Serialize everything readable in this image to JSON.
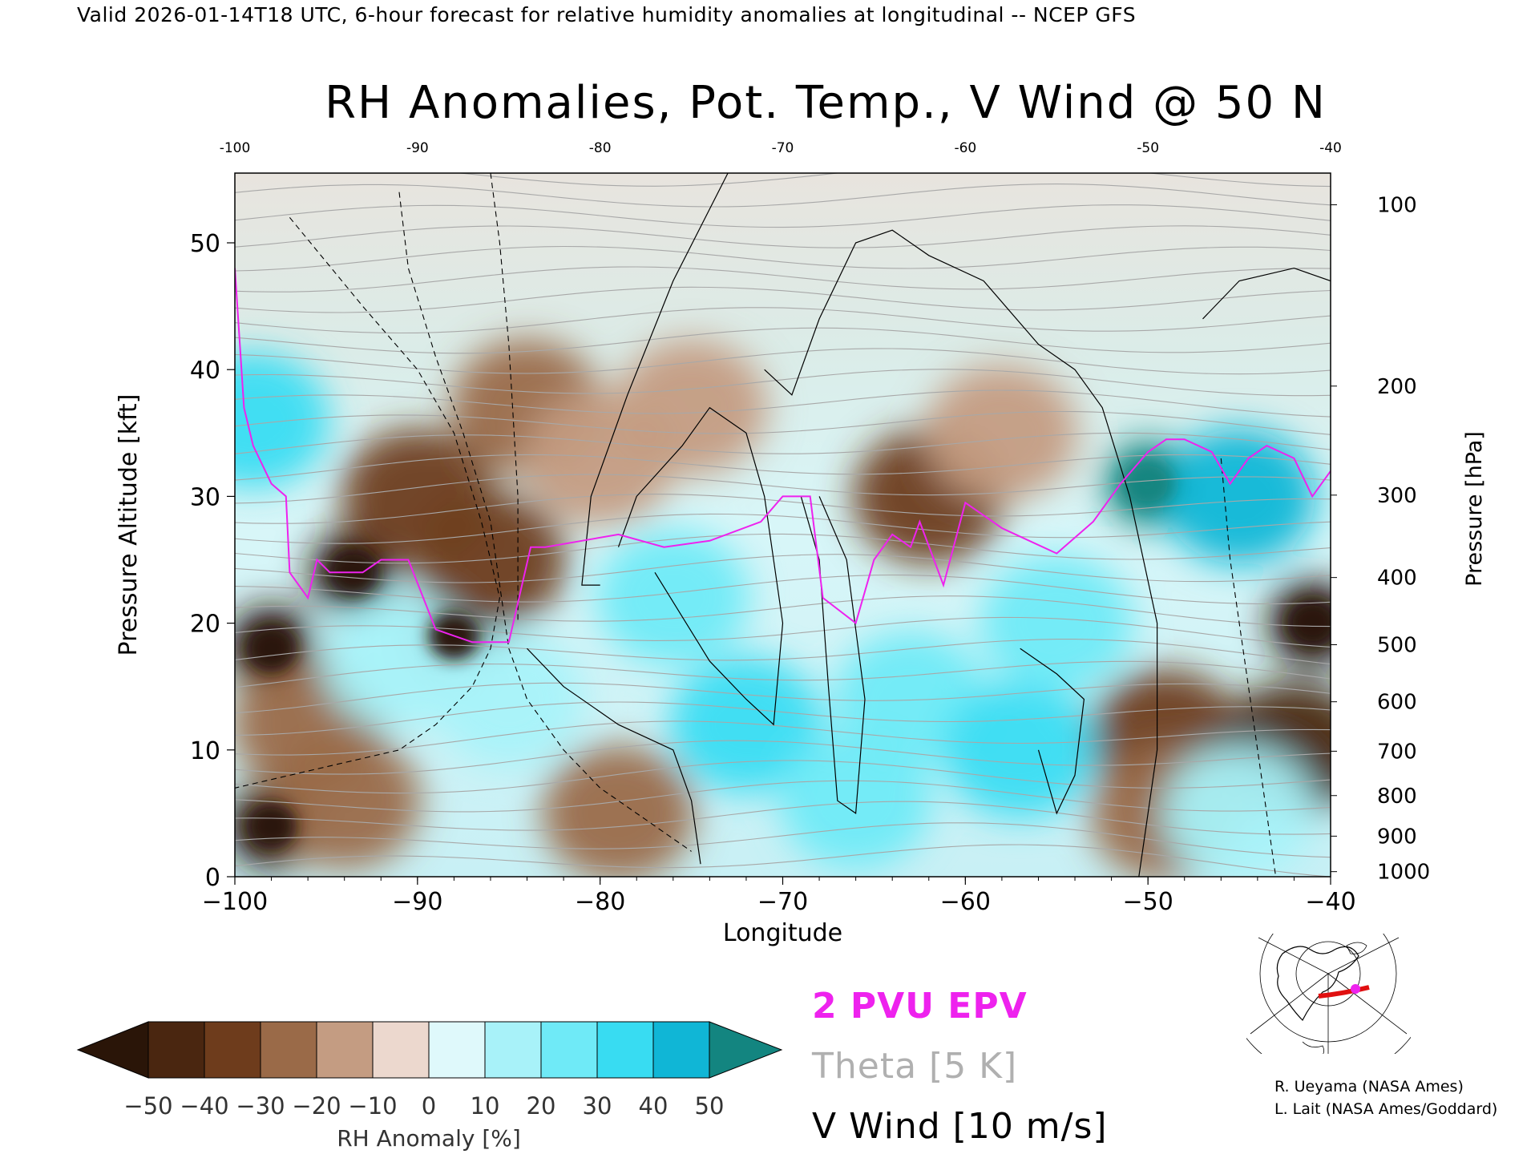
{
  "header": {
    "valid_line": "Valid 2026-01-14T18 UTC, 6-hour forecast for relative humidity anomalies at longitudinal -- NCEP GFS",
    "title": "RH Anomalies, Pot. Temp., V Wind @ 50 N"
  },
  "chart_data": {
    "type": "heatmap",
    "title": "RH Anomalies, Pot. Temp., V Wind @ 50 N",
    "xlabel": "Longitude",
    "ylabel_left": "Pressure Altitude [kft]",
    "ylabel_right": "Pressure [hPa]",
    "xlim": [
      -100,
      -40
    ],
    "ylim": [
      0,
      55.5
    ],
    "x_ticks": [
      -100,
      -90,
      -80,
      -70,
      -60,
      -50,
      -40
    ],
    "x_tick_labels": [
      "−100",
      "−90",
      "−80",
      "−70",
      "−60",
      "−50",
      "−40"
    ],
    "top_tick_labels": [
      "-100",
      "-90",
      "-80",
      "-70",
      "-60",
      "-50",
      "-40"
    ],
    "y_ticks": [
      0,
      10,
      20,
      30,
      40,
      50
    ],
    "y_tick_labels": [
      "0",
      "10",
      "20",
      "30",
      "40",
      "50"
    ],
    "pressure_ticks": [
      {
        "hpa": "100",
        "kft": 53.0
      },
      {
        "hpa": "200",
        "kft": 38.7
      },
      {
        "hpa": "300",
        "kft": 30.1
      },
      {
        "hpa": "400",
        "kft": 23.6
      },
      {
        "hpa": "500",
        "kft": 18.3
      },
      {
        "hpa": "600",
        "kft": 13.8
      },
      {
        "hpa": "700",
        "kft": 9.9
      },
      {
        "hpa": "800",
        "kft": 6.4
      },
      {
        "hpa": "900",
        "kft": 3.2
      },
      {
        "hpa": "1000",
        "kft": 0.4
      }
    ],
    "rh_anomaly_field": [
      {
        "x": -98,
        "y": 18,
        "v": -55
      },
      {
        "x": -98,
        "y": 4,
        "v": -55
      },
      {
        "x": -93.5,
        "y": 24,
        "v": -55
      },
      {
        "x": -88,
        "y": 19,
        "v": -55
      },
      {
        "x": -86,
        "y": 25,
        "v": -40
      },
      {
        "x": -90,
        "y": 30,
        "v": -35
      },
      {
        "x": -96,
        "y": 12,
        "v": -30
      },
      {
        "x": -94,
        "y": 6,
        "v": -25
      },
      {
        "x": -84,
        "y": 37,
        "v": -25
      },
      {
        "x": -80,
        "y": 33,
        "v": -15
      },
      {
        "x": -75,
        "y": 37,
        "v": -20
      },
      {
        "x": -62,
        "y": 30,
        "v": -35
      },
      {
        "x": -58,
        "y": 35,
        "v": -15
      },
      {
        "x": -49,
        "y": 11,
        "v": -35
      },
      {
        "x": -49,
        "y": 5,
        "v": -30
      },
      {
        "x": -41,
        "y": 20,
        "v": -50
      },
      {
        "x": -42,
        "y": 10,
        "v": -45
      },
      {
        "x": -79,
        "y": 5,
        "v": -25
      },
      {
        "x": -76,
        "y": 22,
        "v": 25
      },
      {
        "x": -72,
        "y": 12,
        "v": 30
      },
      {
        "x": -63,
        "y": 14,
        "v": 25
      },
      {
        "x": -57,
        "y": 10,
        "v": 30
      },
      {
        "x": -55,
        "y": 20,
        "v": 20
      },
      {
        "x": -85,
        "y": 14,
        "v": 15
      },
      {
        "x": -66,
        "y": 6,
        "v": 20
      },
      {
        "x": -50,
        "y": 31,
        "v": 55
      },
      {
        "x": -45,
        "y": 30,
        "v": 45
      },
      {
        "x": -99,
        "y": 36,
        "v": 35
      },
      {
        "x": -91,
        "y": 17,
        "v": 15
      },
      {
        "x": -45,
        "y": 5,
        "v": 15
      }
    ],
    "epv_2pvu_line": [
      [
        -100,
        48
      ],
      [
        -99.5,
        37
      ],
      [
        -99,
        34
      ],
      [
        -98,
        31
      ],
      [
        -97.2,
        30
      ],
      [
        -97,
        24
      ],
      [
        -96,
        22
      ],
      [
        -95.5,
        25
      ],
      [
        -94.8,
        24
      ],
      [
        -93,
        24
      ],
      [
        -92,
        25
      ],
      [
        -90.5,
        25
      ],
      [
        -89,
        19.5
      ],
      [
        -88,
        19
      ],
      [
        -87,
        18.5
      ],
      [
        -85,
        18.5
      ],
      [
        -83.8,
        26
      ],
      [
        -83,
        26
      ],
      [
        -81,
        26.5
      ],
      [
        -79,
        27
      ],
      [
        -76.5,
        26
      ],
      [
        -74,
        26.5
      ],
      [
        -71.2,
        28
      ],
      [
        -70,
        30
      ],
      [
        -68.5,
        30
      ],
      [
        -67.8,
        22
      ],
      [
        -66,
        20
      ],
      [
        -65,
        25
      ],
      [
        -64,
        27
      ],
      [
        -63,
        26
      ],
      [
        -62.5,
        28
      ],
      [
        -61.2,
        23
      ],
      [
        -60,
        29.5
      ],
      [
        -59,
        28.5
      ],
      [
        -58,
        27.5
      ],
      [
        -55,
        25.5
      ],
      [
        -53,
        28
      ],
      [
        -51.5,
        31
      ],
      [
        -50,
        33.5
      ],
      [
        -49,
        34.5
      ],
      [
        -48,
        34.5
      ],
      [
        -46.5,
        33.5
      ],
      [
        -45.5,
        31
      ],
      [
        -44.5,
        33
      ],
      [
        -43.5,
        34
      ],
      [
        -42,
        33
      ],
      [
        -41,
        30
      ],
      [
        -40,
        32
      ]
    ],
    "v_wind_solid": [
      [
        [
          -73,
          55.5
        ],
        [
          -76,
          47
        ],
        [
          -78.5,
          38
        ],
        [
          -80.5,
          30
        ],
        [
          -81,
          23
        ],
        [
          -80,
          23
        ]
      ],
      [
        [
          -84,
          18
        ],
        [
          -82,
          15
        ],
        [
          -79,
          12
        ],
        [
          -76,
          10
        ],
        [
          -75,
          6
        ],
        [
          -74.5,
          1
        ]
      ],
      [
        [
          -77,
          24
        ],
        [
          -74,
          17
        ],
        [
          -72,
          14
        ],
        [
          -70.5,
          12
        ],
        [
          -70,
          20
        ],
        [
          -71,
          30
        ],
        [
          -72,
          35
        ],
        [
          -74,
          37
        ],
        [
          -75.5,
          34
        ],
        [
          -78,
          30
        ],
        [
          -79,
          26
        ]
      ],
      [
        [
          -71,
          40
        ],
        [
          -69.5,
          38
        ],
        [
          -68,
          44
        ],
        [
          -66,
          50
        ],
        [
          -64,
          51
        ],
        [
          -62,
          49
        ],
        [
          -59,
          47
        ],
        [
          -56,
          42
        ],
        [
          -54,
          40
        ],
        [
          -52.5,
          37
        ],
        [
          -51,
          30
        ],
        [
          -49.5,
          20
        ],
        [
          -49.5,
          10
        ],
        [
          -50,
          5
        ],
        [
          -50.5,
          0
        ]
      ],
      [
        [
          -69,
          30
        ],
        [
          -68,
          25
        ],
        [
          -67.5,
          15
        ],
        [
          -67,
          6
        ],
        [
          -66,
          5
        ],
        [
          -65.5,
          14
        ],
        [
          -66.5,
          25
        ],
        [
          -68,
          30
        ]
      ],
      [
        [
          -57,
          18
        ],
        [
          -55,
          16
        ],
        [
          -53.5,
          14
        ],
        [
          -54,
          8
        ],
        [
          -55,
          5
        ],
        [
          -56,
          10
        ]
      ],
      [
        [
          -47,
          44
        ],
        [
          -45,
          47
        ],
        [
          -42,
          48
        ],
        [
          -40,
          47
        ]
      ]
    ],
    "v_wind_dashed": [
      [
        [
          -97,
          52
        ],
        [
          -93,
          45
        ],
        [
          -90,
          40
        ],
        [
          -88,
          35
        ],
        [
          -86.5,
          28
        ],
        [
          -85.5,
          22
        ],
        [
          -86,
          18
        ],
        [
          -87,
          15
        ],
        [
          -89,
          12
        ],
        [
          -91,
          10
        ],
        [
          -94,
          9
        ],
        [
          -97,
          8
        ],
        [
          -100,
          7
        ]
      ],
      [
        [
          -91,
          54
        ],
        [
          -90.5,
          48
        ],
        [
          -89,
          41
        ],
        [
          -87.5,
          35
        ],
        [
          -86,
          28
        ],
        [
          -85,
          18
        ],
        [
          -84,
          14
        ],
        [
          -82,
          10
        ],
        [
          -80,
          7
        ],
        [
          -77,
          4
        ],
        [
          -75,
          2
        ]
      ],
      [
        [
          -86,
          55.5
        ],
        [
          -85.5,
          50
        ],
        [
          -85,
          42
        ],
        [
          -84.5,
          30
        ],
        [
          -84.5,
          20
        ]
      ],
      [
        [
          -46,
          33
        ],
        [
          -45.5,
          25
        ],
        [
          -44.5,
          15
        ],
        [
          -43.5,
          5
        ],
        [
          -43,
          0
        ]
      ]
    ],
    "theta_range": [
      255,
      425
    ],
    "colorbar": {
      "label": "RH Anomaly [%]",
      "ticks": [
        "−50",
        "−40",
        "−30",
        "−20",
        "−10",
        "0",
        "10",
        "20",
        "30",
        "40",
        "50"
      ],
      "colors": [
        "#2a1508",
        "#4a2610",
        "#6e3c1c",
        "#9a6a48",
        "#c49c82",
        "#ecd8ce",
        "#dff9fb",
        "#a8f2f9",
        "#6feaf7",
        "#38dcf2",
        "#10b6d6",
        "#0b6e8a",
        "#138580"
      ]
    },
    "legend": [
      {
        "label": "2 PVU EPV",
        "color": "#ee22ee"
      },
      {
        "label": "Theta [5 K]",
        "color": "#b0b0b0"
      },
      {
        "label": "V Wind [10 m/s]",
        "color": "#000000"
      }
    ]
  },
  "credits": [
    "R. Ueyama (NASA Ames)",
    "L. Lait (NASA Ames/Goddard)"
  ]
}
